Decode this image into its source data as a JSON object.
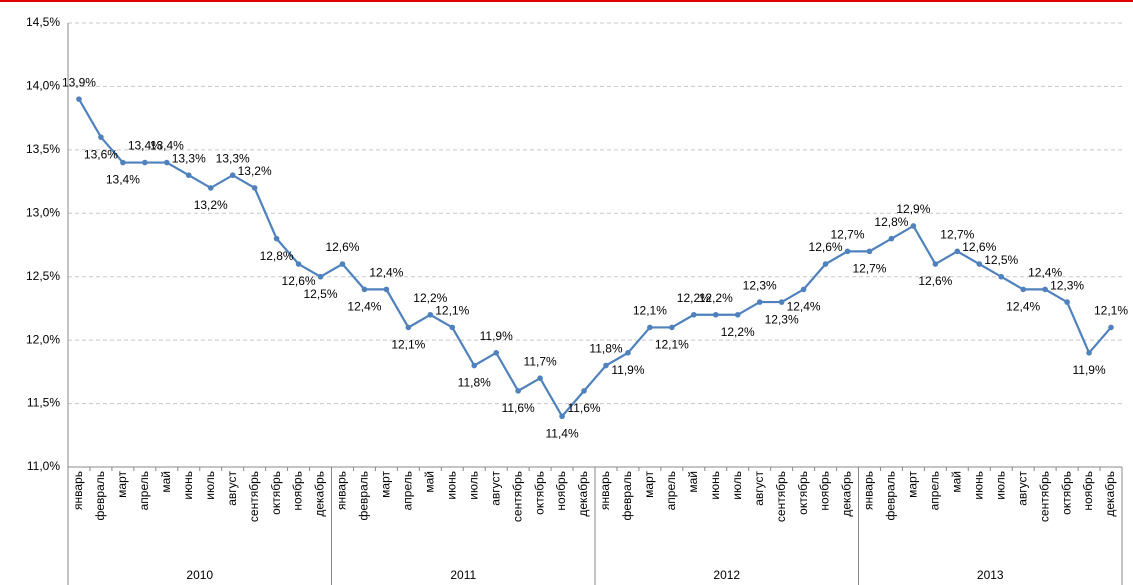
{
  "chart_data": {
    "type": "line",
    "categories": [
      "январь",
      "февраль",
      "март",
      "апрель",
      "май",
      "июнь",
      "июль",
      "август",
      "сентябрь",
      "октябрь",
      "ноябрь",
      "декабрь",
      "январь",
      "февраль",
      "март",
      "апрель",
      "май",
      "июнь",
      "июль",
      "август",
      "сентябрь",
      "октябрь",
      "ноябрь",
      "декабрь",
      "январь",
      "февраль",
      "март",
      "апрель",
      "май",
      "июнь",
      "июль",
      "август",
      "сентябрь",
      "октябрь",
      "ноябрь",
      "декабрь",
      "январь",
      "февраль",
      "март",
      "апрель",
      "май",
      "июнь",
      "июль",
      "август",
      "сентябрь",
      "октябрь",
      "ноябрь",
      "декабрь"
    ],
    "category_groups": [
      "2010",
      "2011",
      "2012",
      "2013"
    ],
    "series": [
      {
        "color": "#4f81bd",
        "values": [
          13.9,
          13.6,
          13.4,
          13.4,
          13.4,
          13.3,
          13.2,
          13.3,
          13.2,
          12.8,
          12.6,
          12.5,
          12.6,
          12.4,
          12.4,
          12.1,
          12.2,
          12.1,
          11.8,
          11.9,
          11.6,
          11.7,
          11.4,
          11.6,
          11.8,
          11.9,
          12.1,
          12.1,
          12.2,
          12.2,
          12.2,
          12.3,
          12.3,
          12.4,
          12.6,
          12.7,
          12.7,
          12.8,
          12.9,
          12.6,
          12.7,
          12.6,
          12.5,
          12.4,
          12.4,
          12.3,
          11.9,
          12.1
        ],
        "value_labels": [
          "13,9%",
          "13,6%",
          "13,4%",
          "13,4%",
          "13,4%",
          "13,3%",
          "13,2%",
          "13,3%",
          "13,2%",
          "12,8%",
          "12,6%",
          "12,5%",
          "12,6%",
          "12,4%",
          "12,4%",
          "12,1%",
          "12,2%",
          "12,1%",
          "11,8%",
          "11,9%",
          "11,6%",
          "11,7%",
          "11,4%",
          "11,6%",
          "11,8%",
          "11,9%",
          "12,1%",
          "12,1%",
          "12,2%",
          "12,2%",
          "12,2%",
          "12,3%",
          "12,3%",
          "12,4%",
          "12,6%",
          "12,7%",
          "12,7%",
          "12,8%",
          "12,9%",
          "12,6%",
          "12,7%",
          "12,6%",
          "12,5%",
          "12,4%",
          "12,4%",
          "12,3%",
          "11,9%",
          "12,1%"
        ]
      }
    ],
    "ylim": [
      11.0,
      14.5
    ],
    "yticks": [
      {
        "value": 11.0,
        "label": "11,0%"
      },
      {
        "value": 11.5,
        "label": "11,5%"
      },
      {
        "value": 12.0,
        "label": "12,0%"
      },
      {
        "value": 12.5,
        "label": "12,5%"
      },
      {
        "value": 13.0,
        "label": "13,0%"
      },
      {
        "value": 13.5,
        "label": "13,5%"
      },
      {
        "value": 14.0,
        "label": "14,0%"
      },
      {
        "value": 14.5,
        "label": "14,5%"
      }
    ],
    "grid": true
  }
}
